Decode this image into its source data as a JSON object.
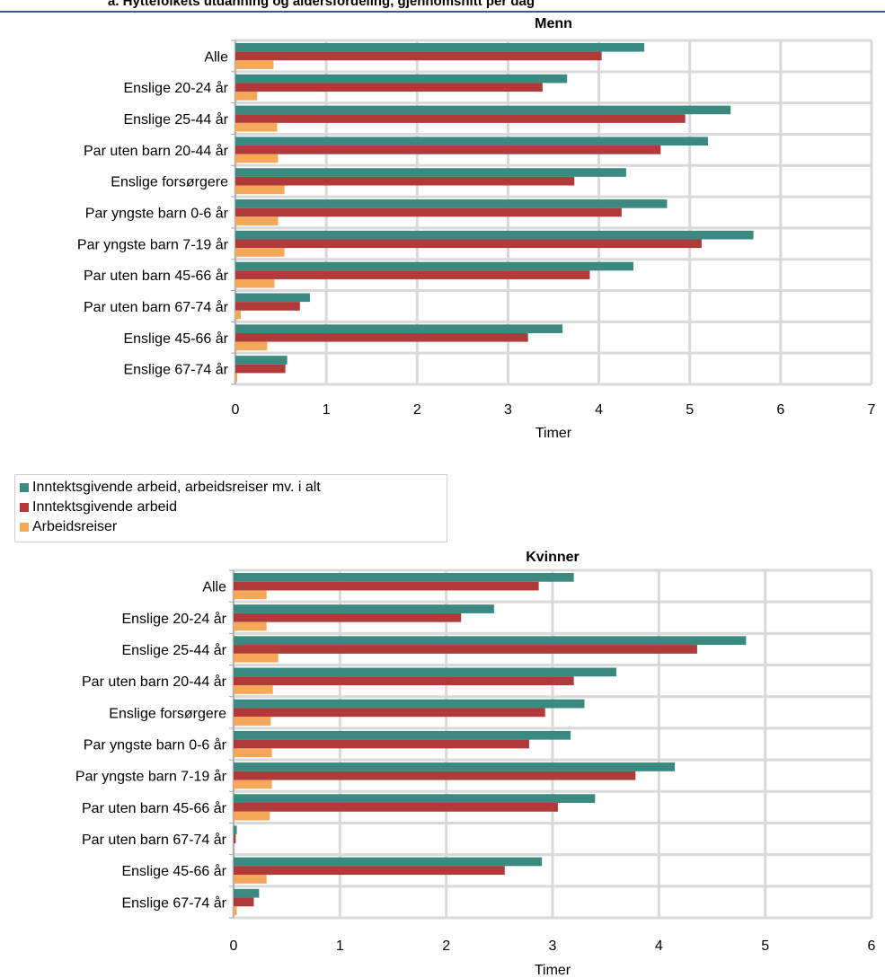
{
  "header": {
    "clipped_title": "å. Hyttefolkets utdanning og aldersfordeling, gjennomsnitt per dag"
  },
  "legend": {
    "items": [
      {
        "label": "Inntektsgivende arbeid, arbeidsreiser mv. i alt",
        "color": "#3a8a82"
      },
      {
        "label": "Inntektsgivende arbeid",
        "color": "#b03a3a"
      },
      {
        "label": "Arbeidsreiser",
        "color": "#f6a85a"
      }
    ]
  },
  "chart_data": [
    {
      "type": "bar",
      "orientation": "horizontal",
      "title": "Menn",
      "xlabel": "Timer",
      "xlim": [
        0,
        7
      ],
      "xticks": [
        "0",
        "1",
        "2",
        "3",
        "4",
        "5",
        "6",
        "7"
      ],
      "grid": true,
      "categories": [
        "Alle",
        "Enslige 20-24  år",
        "Enslige 25-44 år",
        "Par uten barn  20-44 år",
        "Enslige forsørgere",
        "Par yngste barn  0-6 år",
        "Par yngste barn 7-19 år",
        "Par uten barn 45-66 år",
        "Par uten barn 67-74 år",
        "Enslige 45-66 år",
        "Enslige 67-74 år"
      ],
      "series": [
        {
          "name": "Inntektsgivende arbeid, arbeidsreiser mv. i alt",
          "color": "#3a8a82",
          "values": [
            4.5,
            3.65,
            5.45,
            5.2,
            4.3,
            4.75,
            5.7,
            4.38,
            0.82,
            3.6,
            0.57
          ]
        },
        {
          "name": "Inntektsgivende arbeid",
          "color": "#b03a3a",
          "values": [
            4.03,
            3.38,
            4.95,
            4.68,
            3.73,
            4.25,
            5.13,
            3.9,
            0.71,
            3.22,
            0.55
          ]
        },
        {
          "name": "Arbeidsreiser",
          "color": "#f6a85a",
          "values": [
            0.42,
            0.24,
            0.46,
            0.47,
            0.54,
            0.47,
            0.54,
            0.43,
            0.06,
            0.35,
            0.02
          ]
        }
      ]
    },
    {
      "type": "bar",
      "orientation": "horizontal",
      "title": "Kvinner",
      "xlabel": "Timer",
      "xlim": [
        0,
        6
      ],
      "xticks": [
        "0",
        "1",
        "2",
        "3",
        "4",
        "5",
        "6"
      ],
      "grid": true,
      "categories": [
        "Alle",
        "Enslige 20-24  år",
        "Enslige 25-44 år",
        "Par uten barn  20-44 år",
        "Enslige forsørgere",
        "Par yngste barn  0-6 år",
        "Par yngste barn 7-19 år",
        "Par uten barn 45-66 år",
        "Par uten barn 67-74 år",
        "Enslige 45-66 år",
        "Enslige 67-74 år"
      ],
      "series": [
        {
          "name": "Inntektsgivende arbeid, arbeidsreiser mv. i alt",
          "color": "#3a8a82",
          "values": [
            3.2,
            2.45,
            4.82,
            3.6,
            3.3,
            3.17,
            4.15,
            3.4,
            0.03,
            2.9,
            0.24
          ]
        },
        {
          "name": "Inntektsgivende arbeid",
          "color": "#b03a3a",
          "values": [
            2.87,
            2.14,
            4.36,
            3.2,
            2.93,
            2.78,
            3.78,
            3.05,
            0.02,
            2.55,
            0.19
          ]
        },
        {
          "name": "Arbeidsreiser",
          "color": "#f6a85a",
          "values": [
            0.31,
            0.31,
            0.42,
            0.37,
            0.35,
            0.36,
            0.36,
            0.34,
            0.0,
            0.31,
            0.03
          ]
        }
      ]
    }
  ]
}
